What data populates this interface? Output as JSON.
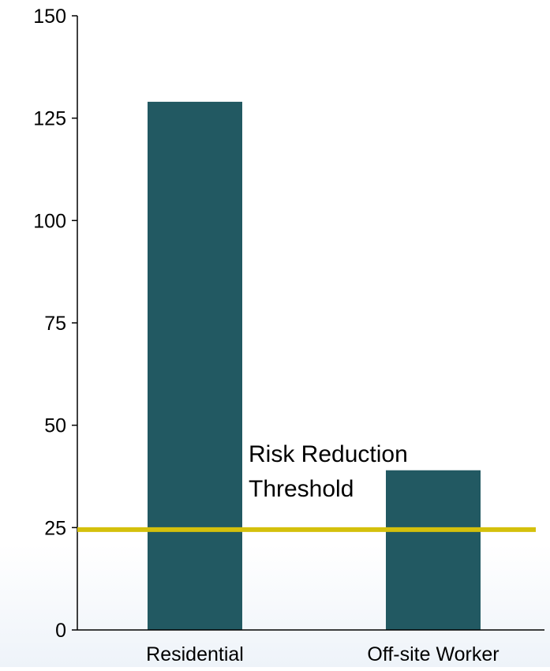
{
  "chart_data": {
    "type": "bar",
    "categories": [
      "Residential",
      "Off-site Worker"
    ],
    "values": [
      129,
      39
    ],
    "ylim": [
      0,
      150
    ],
    "yticks": [
      0,
      25,
      50,
      75,
      100,
      125,
      150
    ],
    "grid": false,
    "bar_color": "#225962",
    "threshold": {
      "value": 24.5,
      "label_lines": [
        "Risk Reduction",
        "Threshold"
      ],
      "color": "#d4c00c"
    }
  }
}
